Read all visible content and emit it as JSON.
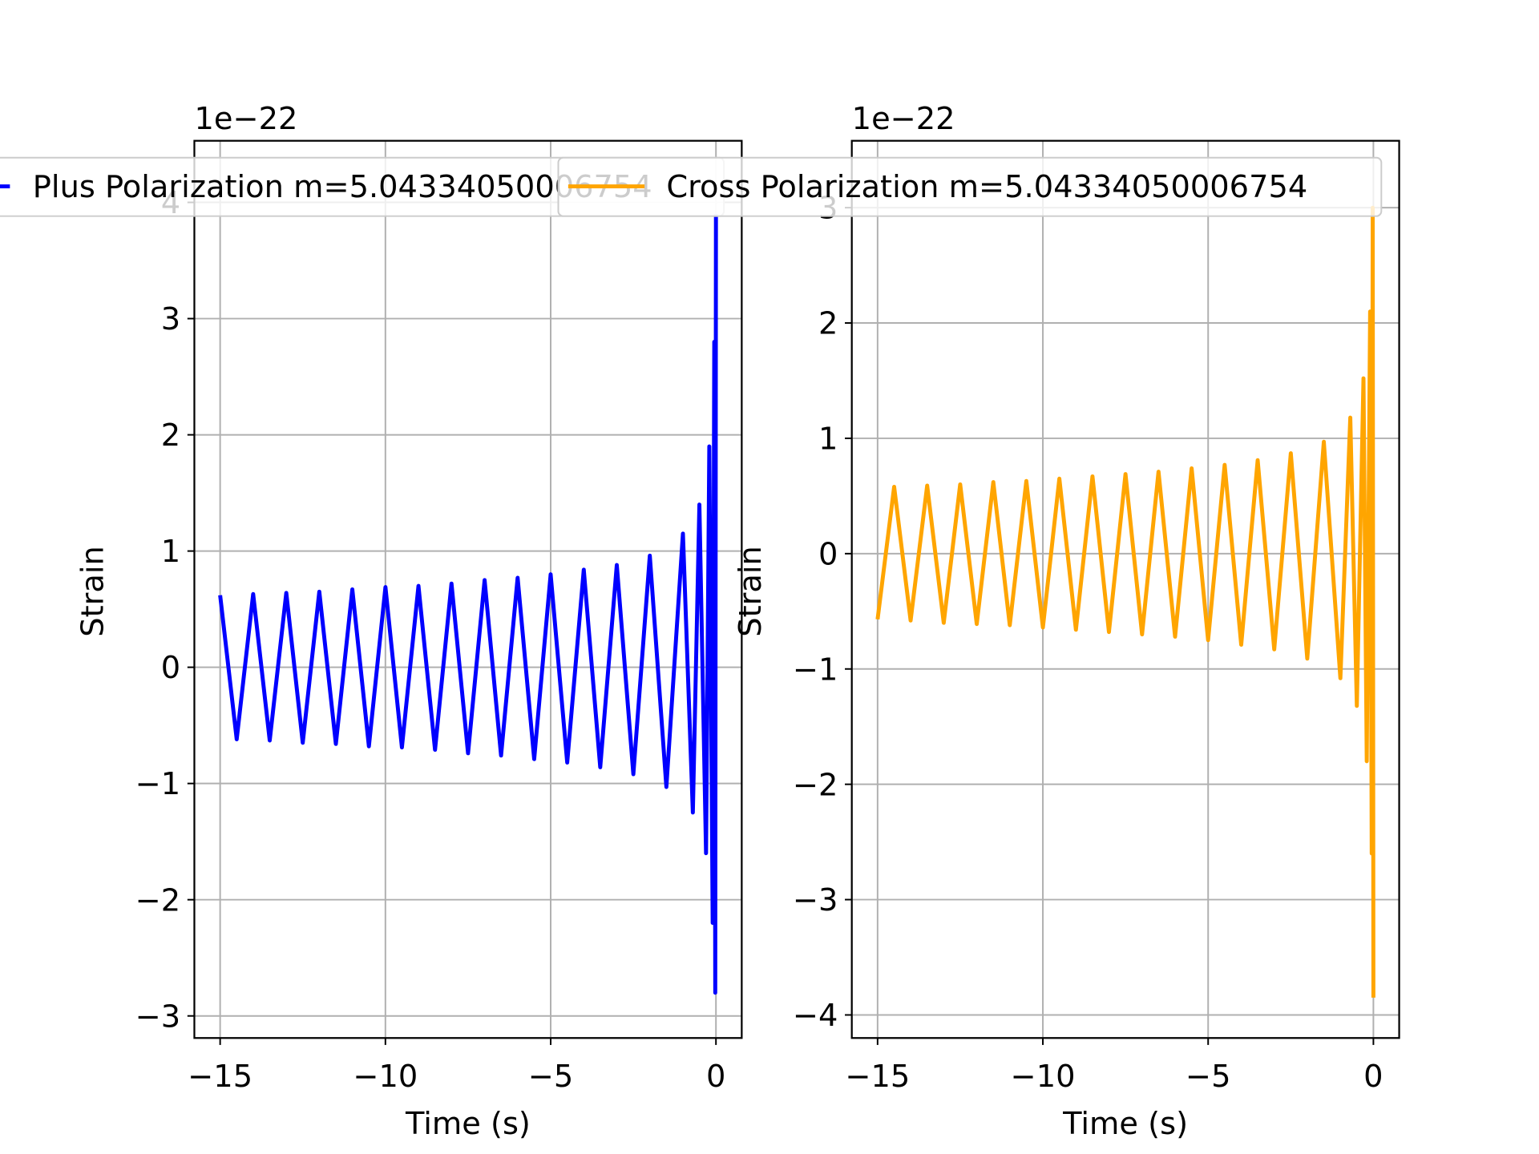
{
  "chart_data": [
    {
      "type": "line",
      "x_label": "Time (s)",
      "y_label": "Strain",
      "offset_text": "1e−22",
      "grid": true,
      "xlim": [
        -15.78,
        0.78
      ],
      "ylim": [
        -3.19,
        4.53
      ],
      "xticks": [
        {
          "value": -15,
          "label": "−15"
        },
        {
          "value": -10,
          "label": "−10"
        },
        {
          "value": -5,
          "label": "−5"
        },
        0
      ],
      "yticks": [
        {
          "value": -3,
          "label": "−3"
        },
        {
          "value": -2,
          "label": "−2"
        },
        {
          "value": -1,
          "label": "−1"
        },
        0,
        1,
        2,
        3,
        4
      ],
      "x": [
        -15,
        -14.5,
        -14,
        -13.5,
        -13,
        -12.5,
        -12,
        -11.5,
        -11,
        -10.5,
        -10,
        -9.5,
        -9,
        -8.5,
        -8,
        -7.5,
        -7,
        -6.5,
        -6,
        -5.5,
        -5,
        -4.5,
        -4,
        -3.5,
        -3,
        -2.5,
        -2,
        -1.5,
        -1,
        -0.7,
        -0.5,
        -0.3,
        -0.2,
        -0.1,
        -0.05,
        -0.02,
        0
      ],
      "series": [
        {
          "name": "Plus Polarization m=5.04334050006754",
          "color": "#0000ff",
          "values": [
            0.62,
            -0.62,
            0.63,
            -0.63,
            0.64,
            -0.65,
            0.65,
            -0.66,
            0.67,
            -0.68,
            0.69,
            -0.69,
            0.7,
            -0.71,
            0.72,
            -0.74,
            0.75,
            -0.76,
            0.77,
            -0.79,
            0.8,
            -0.82,
            0.84,
            -0.86,
            0.88,
            -0.92,
            0.96,
            -1.03,
            1.15,
            -1.25,
            1.4,
            -1.6,
            1.9,
            -2.2,
            2.8,
            -2.8,
            3.9
          ]
        }
      ]
    },
    {
      "type": "line",
      "x_label": "Time (s)",
      "y_label": "Strain",
      "offset_text": "1e−22",
      "grid": true,
      "xlim": [
        -15.78,
        0.78
      ],
      "ylim": [
        -4.2,
        3.58
      ],
      "xticks": [
        {
          "value": -15,
          "label": "−15"
        },
        {
          "value": -10,
          "label": "−10"
        },
        {
          "value": -5,
          "label": "−5"
        },
        0
      ],
      "yticks": [
        {
          "value": -4,
          "label": "−4"
        },
        {
          "value": -3,
          "label": "−3"
        },
        {
          "value": -2,
          "label": "−2"
        },
        {
          "value": -1,
          "label": "−1"
        },
        0,
        1,
        2,
        3
      ],
      "x": [
        -15,
        -14.5,
        -14,
        -13.5,
        -13,
        -12.5,
        -12,
        -11.5,
        -11,
        -10.5,
        -10,
        -9.5,
        -9,
        -8.5,
        -8,
        -7.5,
        -7,
        -6.5,
        -6,
        -5.5,
        -5,
        -4.5,
        -4,
        -3.5,
        -3,
        -2.5,
        -2,
        -1.5,
        -1,
        -0.7,
        -0.5,
        -0.3,
        -0.2,
        -0.1,
        -0.05,
        -0.02,
        0
      ],
      "series": [
        {
          "name": "Cross Polarization m=5.04334050006754",
          "color": "#ffa500",
          "values": [
            -0.57,
            0.58,
            -0.58,
            0.59,
            -0.6,
            0.6,
            -0.61,
            0.62,
            -0.62,
            0.63,
            -0.64,
            0.65,
            -0.66,
            0.67,
            -0.68,
            0.69,
            -0.7,
            0.71,
            -0.72,
            0.74,
            -0.75,
            0.77,
            -0.79,
            0.81,
            -0.83,
            0.87,
            -0.91,
            0.97,
            -1.08,
            1.18,
            -1.32,
            1.52,
            -1.8,
            2.1,
            -2.6,
            3.0,
            -3.85
          ]
        }
      ]
    }
  ]
}
